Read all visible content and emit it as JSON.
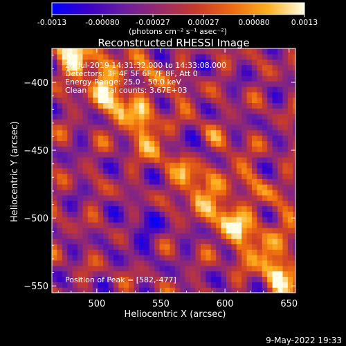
{
  "chart_data": {
    "type": "heatmap",
    "title": "Reconstructed RHESSI Image",
    "xlabel": "Heliocentric X (arcsec)",
    "ylabel": "Heliocentric Y (arcsec)",
    "xlim": [
      465,
      655
    ],
    "ylim": [
      -555,
      -375
    ],
    "xticks": [
      500,
      550,
      600,
      650
    ],
    "yticks": [
      -400,
      -450,
      -500,
      -550
    ],
    "colorbar": {
      "range": [
        -0.0013,
        0.0013
      ],
      "ticks": [
        "-0.0013",
        "-0.00080",
        "-0.00027",
        "0.00027",
        "0.00080",
        "0.0013"
      ],
      "unit_label": "(photons cm⁻² s⁻¹ asec⁻²)",
      "colormap": [
        "#0000ff",
        "#3a00c8",
        "#6a1e9e",
        "#9a2a6a",
        "#c63a2c",
        "#ee6a10",
        "#ffb020",
        "#ffffe8"
      ]
    },
    "annotations": [
      "28-Jul-2019 14:31:32.000 to 14:33:08.000",
      "Detectors: 3F 4F 5F 6F 7F 8F, Att 0",
      "Energy Range: 25.0 - 50.0 keV",
      "Clean     Total counts: 3.67E+03"
    ],
    "peak_label": "Position of Peak = [582,-477]",
    "peak": [
      582,
      -477
    ]
  },
  "footer": {
    "timestamp": "9-May-2022 19:33"
  }
}
